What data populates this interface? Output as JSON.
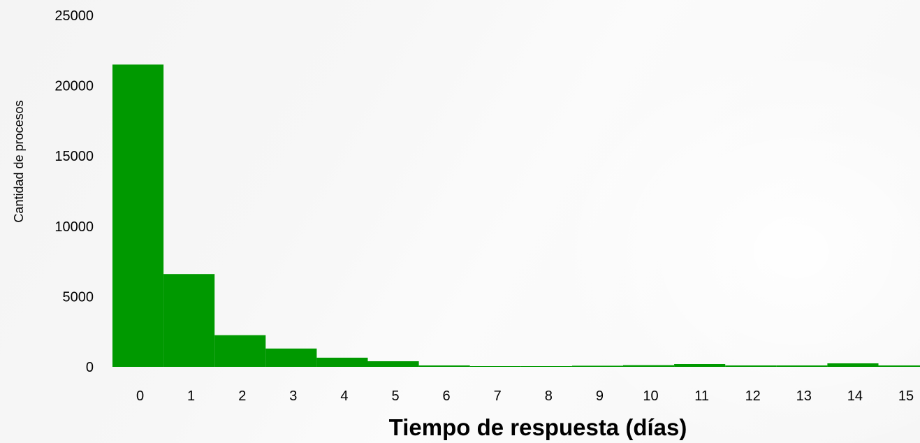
{
  "chart_data": {
    "type": "bar",
    "title": "",
    "xlabel": "Tiempo de respuesta (días)",
    "ylabel": "Cantidad de procesos",
    "categories": [
      "0",
      "1",
      "2",
      "3",
      "4",
      "5",
      "6",
      "7",
      "8",
      "9",
      "10",
      "11",
      "12",
      "13",
      "14",
      "15"
    ],
    "values": [
      21500,
      6600,
      2250,
      1300,
      650,
      400,
      100,
      50,
      50,
      80,
      120,
      200,
      100,
      100,
      250,
      100
    ],
    "ylim": [
      0,
      25000
    ],
    "yticks": [
      0,
      5000,
      10000,
      15000,
      20000,
      25000
    ],
    "grid": false,
    "legend": "none",
    "bar_color": "#009900"
  }
}
